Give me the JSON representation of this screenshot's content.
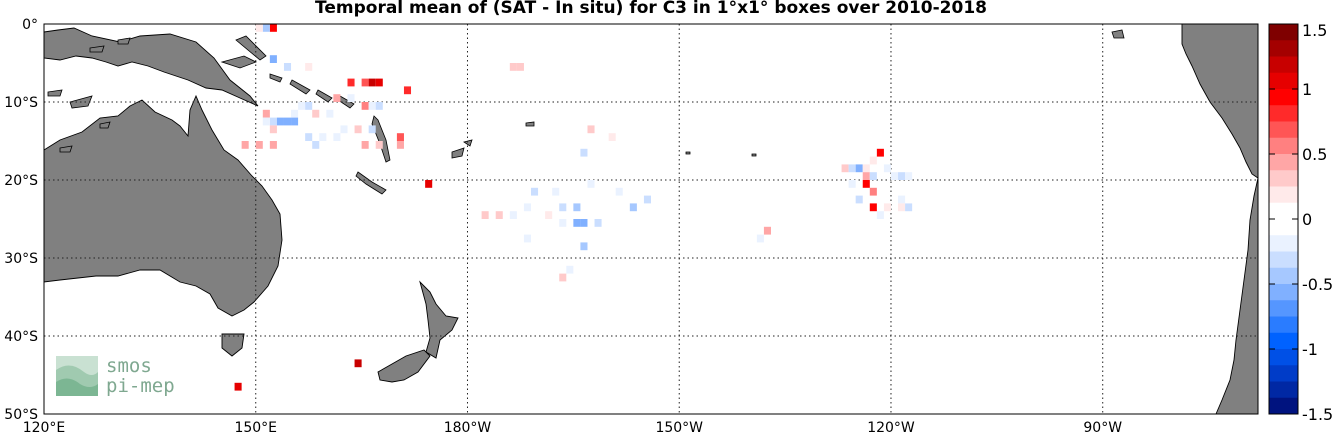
{
  "title": "Temporal mean of (SAT - In situ) for C3 in 1°x1° boxes over 2010-2018",
  "logo": {
    "line1": "smos",
    "line2": "pi-mep"
  },
  "map": {
    "lon_range": [
      120,
      292
    ],
    "lat_range": [
      -50,
      0
    ],
    "lon_ticks": [
      {
        "value": 120,
        "label": "120°E"
      },
      {
        "value": 150,
        "label": "150°E"
      },
      {
        "value": 180,
        "label": "180°W"
      },
      {
        "value": 210,
        "label": "150°W"
      },
      {
        "value": 240,
        "label": "120°W"
      },
      {
        "value": 270,
        "label": "90°W"
      }
    ],
    "lat_ticks": [
      {
        "value": 0,
        "label": "0°"
      },
      {
        "value": -10,
        "label": "10°S"
      },
      {
        "value": -20,
        "label": "20°S"
      },
      {
        "value": -30,
        "label": "30°S"
      },
      {
        "value": -40,
        "label": "40°S"
      },
      {
        "value": -50,
        "label": "50°S"
      }
    ],
    "land_color": "#808080",
    "grid": true
  },
  "colorbar": {
    "range": [
      -1.5,
      1.5
    ],
    "tick_labels": [
      "1.5",
      "1",
      "0.5",
      "0",
      "-0.5",
      "-1",
      "-1.5"
    ],
    "colors": [
      "#7f0000",
      "#a40000",
      "#c80000",
      "#e60000",
      "#ff0000",
      "#ff2a2a",
      "#ff5555",
      "#ff8080",
      "#ffa6a6",
      "#ffcaca",
      "#ffeaea",
      "#ffffff",
      "#ffffff",
      "#eaf2ff",
      "#cadeff",
      "#a6c8ff",
      "#80b0ff",
      "#5596ff",
      "#2a7cff",
      "#0062ff",
      "#0050e6",
      "#003cc8",
      "#0028a4",
      "#00137f"
    ]
  },
  "chart_data": {
    "type": "heatmap",
    "title": "Temporal mean of (SAT - In situ) for C3 in 1°x1° boxes over 2010-2018",
    "units_note": "",
    "value_range": [
      -1.5,
      1.5
    ],
    "cells_lon_lat_value": [
      [
        152.5,
        -0.5,
        0.9
      ],
      [
        151.5,
        -0.5,
        -0.4
      ],
      [
        150.5,
        -0.5,
        0.2
      ],
      [
        152.5,
        -4.5,
        -0.5
      ],
      [
        154.5,
        -5.5,
        -0.3
      ],
      [
        157.5,
        -5.5,
        0.25
      ],
      [
        163.5,
        -7.5,
        0.8
      ],
      [
        165.5,
        -7.5,
        0.7
      ],
      [
        166.5,
        -7.5,
        1.2
      ],
      [
        167.5,
        -7.5,
        1.1
      ],
      [
        171.5,
        -8.5,
        0.8
      ],
      [
        161.5,
        -9.5,
        0.4
      ],
      [
        163.5,
        -9.5,
        -0.2
      ],
      [
        165.5,
        -10.5,
        0.6
      ],
      [
        166.5,
        -10.5,
        -0.2
      ],
      [
        167.5,
        -10.5,
        -0.3
      ],
      [
        156.5,
        -10.5,
        -0.2
      ],
      [
        157.5,
        -10.5,
        -0.3
      ],
      [
        160.5,
        -11.5,
        -0.2
      ],
      [
        158.5,
        -11.5,
        0.3
      ],
      [
        155.5,
        -11.5,
        -0.2
      ],
      [
        151.5,
        -11.5,
        0.4
      ],
      [
        152.5,
        -12.5,
        -0.3
      ],
      [
        153.5,
        -12.5,
        -0.5
      ],
      [
        154.5,
        -12.5,
        -0.6
      ],
      [
        155.5,
        -12.5,
        -0.5
      ],
      [
        151.5,
        -12.5,
        -0.2
      ],
      [
        152.5,
        -13.5,
        0.3
      ],
      [
        162.5,
        -13.5,
        -0.2
      ],
      [
        166.5,
        -13.5,
        -0.3
      ],
      [
        164.5,
        -13.5,
        0.3
      ],
      [
        157.5,
        -14.5,
        -0.3
      ],
      [
        159.5,
        -14.5,
        -0.2
      ],
      [
        161.5,
        -14.5,
        -0.2
      ],
      [
        170.5,
        -14.5,
        0.7
      ],
      [
        148.5,
        -15.5,
        0.5
      ],
      [
        150.5,
        -15.5,
        0.5
      ],
      [
        152.5,
        -15.5,
        0.4
      ],
      [
        158.5,
        -15.5,
        -0.3
      ],
      [
        165.5,
        -15.5,
        0.5
      ],
      [
        167.5,
        -15.5,
        0.3
      ],
      [
        170.5,
        -15.5,
        0.4
      ],
      [
        186.5,
        -5.5,
        0.3
      ],
      [
        187.5,
        -5.5,
        0.3
      ],
      [
        174.5,
        -20.5,
        1.1
      ],
      [
        197.5,
        -13.5,
        0.3
      ],
      [
        200.5,
        -14.5,
        0.2
      ],
      [
        196.5,
        -16.5,
        -0.3
      ],
      [
        197.5,
        -20.5,
        -0.2
      ],
      [
        189.5,
        -21.5,
        -0.3
      ],
      [
        192.5,
        -21.5,
        -0.2
      ],
      [
        201.5,
        -21.5,
        -0.2
      ],
      [
        205.5,
        -22.5,
        -0.3
      ],
      [
        188.5,
        -23.5,
        -0.2
      ],
      [
        203.5,
        -23.5,
        -0.4
      ],
      [
        193.5,
        -23.5,
        -0.3
      ],
      [
        195.5,
        -23.5,
        -0.4
      ],
      [
        182.5,
        -24.5,
        0.3
      ],
      [
        184.5,
        -24.5,
        0.3
      ],
      [
        186.5,
        -24.5,
        -0.2
      ],
      [
        191.5,
        -24.5,
        0.25
      ],
      [
        193.5,
        -25.5,
        -0.2
      ],
      [
        195.5,
        -25.5,
        -0.5
      ],
      [
        196.5,
        -25.5,
        -0.5
      ],
      [
        198.5,
        -25.5,
        -0.3
      ],
      [
        188.5,
        -27.5,
        -0.2
      ],
      [
        196.5,
        -28.5,
        -0.4
      ],
      [
        194.5,
        -31.5,
        -0.2
      ],
      [
        193.5,
        -32.5,
        0.3
      ],
      [
        222.5,
        -26.5,
        0.4
      ],
      [
        221.5,
        -27.5,
        -0.2
      ],
      [
        233.5,
        -18.5,
        0.3
      ],
      [
        234.5,
        -18.5,
        -0.3
      ],
      [
        235.5,
        -18.5,
        -0.6
      ],
      [
        236.5,
        -18.5,
        0.2
      ],
      [
        237.5,
        -17.5,
        0.2
      ],
      [
        238.5,
        -16.5,
        0.9
      ],
      [
        239.5,
        -18.5,
        -0.2
      ],
      [
        240.5,
        -19.5,
        -0.2
      ],
      [
        236.5,
        -19.5,
        0.5
      ],
      [
        236.5,
        -20.5,
        1.0
      ],
      [
        237.5,
        -21.5,
        0.6
      ],
      [
        235.5,
        -22.5,
        -0.3
      ],
      [
        237.5,
        -23.5,
        1.0
      ],
      [
        238.5,
        -24.5,
        -0.2
      ],
      [
        239.5,
        -23.5,
        0.2
      ],
      [
        241.5,
        -19.5,
        -0.3
      ],
      [
        242.5,
        -19.5,
        -0.2
      ],
      [
        241.5,
        -22.5,
        -0.2
      ],
      [
        241.5,
        -23.5,
        0.25
      ],
      [
        242.5,
        -23.5,
        -0.3
      ],
      [
        234.5,
        -20.5,
        -0.2
      ],
      [
        237.5,
        -19.5,
        -0.3
      ],
      [
        164.5,
        -43.5,
        1.2
      ],
      [
        147.5,
        -46.5,
        1.1
      ]
    ]
  }
}
